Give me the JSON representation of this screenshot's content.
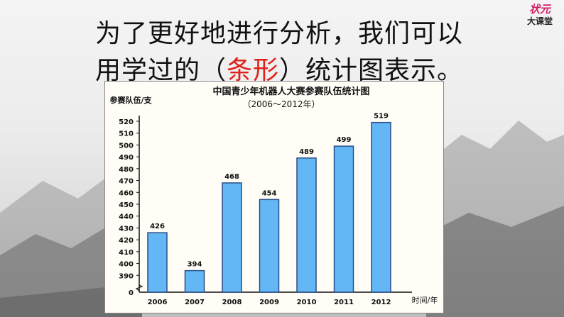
{
  "heading": {
    "line1": "为了更好地进行分析，我们可以",
    "line2_before": "用学过的（",
    "line2_highlight": "条形",
    "line2_after": "）统计图表示。"
  },
  "logo": {
    "top": "状元",
    "bottom": "大课堂"
  },
  "colors": {
    "bar": "#62b7f4",
    "bar_stroke": "#2a4f8a",
    "highlight": "#e0211c"
  },
  "chart_data": {
    "type": "bar",
    "title": "中国青少年机器人大赛参赛队伍统计图",
    "subtitle": "（2006～2012年）",
    "ylabel": "参赛队伍/支",
    "xlabel": "时间/年",
    "categories": [
      "2006",
      "2007",
      "2008",
      "2009",
      "2010",
      "2011",
      "2012"
    ],
    "values": [
      426,
      394,
      468,
      454,
      489,
      499,
      519
    ],
    "yticks": [
      "0",
      "390",
      "400",
      "410",
      "420",
      "430",
      "440",
      "450",
      "460",
      "470",
      "480",
      "490",
      "500",
      "510",
      "520"
    ],
    "ylim": [
      380,
      525
    ],
    "axis_break": true,
    "grid": false
  }
}
